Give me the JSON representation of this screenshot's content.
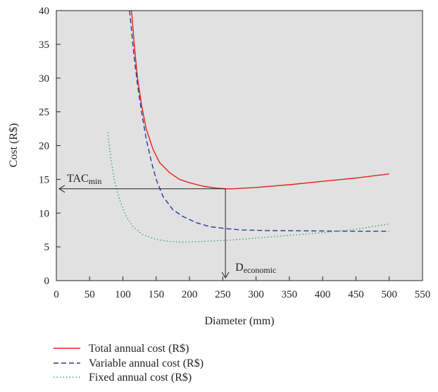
{
  "chart_data": {
    "type": "line",
    "xlabel": "Diameter (mm)",
    "ylabel": "Cost (R$)",
    "xlim": [
      0,
      550
    ],
    "ylim": [
      0,
      40
    ],
    "xticks": [
      0,
      50,
      100,
      150,
      200,
      250,
      300,
      350,
      400,
      450,
      500,
      550
    ],
    "yticks": [
      0,
      5,
      10,
      15,
      20,
      25,
      30,
      35,
      40
    ],
    "grid": false,
    "plot_background": "#e1e1e1",
    "legend_position": "bottom-left",
    "series": [
      {
        "name": "Total annual cost (R$)",
        "color": "#e8201a",
        "style": "solid",
        "points": [
          [
            113,
            40
          ],
          [
            117,
            35
          ],
          [
            122,
            30
          ],
          [
            128,
            26
          ],
          [
            135,
            22.5
          ],
          [
            145,
            19.5
          ],
          [
            155,
            17.5
          ],
          [
            170,
            16
          ],
          [
            185,
            15
          ],
          [
            200,
            14.5
          ],
          [
            220,
            14
          ],
          [
            240,
            13.7
          ],
          [
            255,
            13.6
          ],
          [
            265,
            13.6
          ],
          [
            300,
            13.8
          ],
          [
            350,
            14.2
          ],
          [
            400,
            14.7
          ],
          [
            450,
            15.2
          ],
          [
            500,
            15.8
          ]
        ]
      },
      {
        "name": "Variable annual cost (R$)",
        "color": "#2a3a9a",
        "style": "dashed",
        "points": [
          [
            110,
            40
          ],
          [
            113,
            37
          ],
          [
            117,
            33
          ],
          [
            122,
            29
          ],
          [
            128,
            25
          ],
          [
            135,
            21
          ],
          [
            143,
            17.5
          ],
          [
            150,
            15
          ],
          [
            160,
            12.5
          ],
          [
            175,
            10.5
          ],
          [
            190,
            9.5
          ],
          [
            210,
            8.6
          ],
          [
            230,
            8
          ],
          [
            255,
            7.7
          ],
          [
            280,
            7.5
          ],
          [
            320,
            7.4
          ],
          [
            400,
            7.35
          ],
          [
            450,
            7.3
          ],
          [
            500,
            7.3
          ]
        ]
      },
      {
        "name": "Fixed annual cost (R$)",
        "color": "#2faa74",
        "style": "dotted",
        "points": [
          [
            77,
            22
          ],
          [
            82,
            18
          ],
          [
            88,
            14.5
          ],
          [
            95,
            12
          ],
          [
            105,
            9.5
          ],
          [
            115,
            8
          ],
          [
            130,
            6.8
          ],
          [
            150,
            6.1
          ],
          [
            170,
            5.8
          ],
          [
            190,
            5.7
          ],
          [
            220,
            5.8
          ],
          [
            260,
            6
          ],
          [
            300,
            6.3
          ],
          [
            350,
            6.7
          ],
          [
            400,
            7.1
          ],
          [
            450,
            7.6
          ],
          [
            500,
            8.4
          ]
        ]
      }
    ],
    "annotations": {
      "tac_label_main": "TAC",
      "tac_label_sub": "min",
      "tac_value": 13.6,
      "decon_label_main": "D",
      "decon_label_sub": "economic",
      "decon_value": 254
    }
  }
}
